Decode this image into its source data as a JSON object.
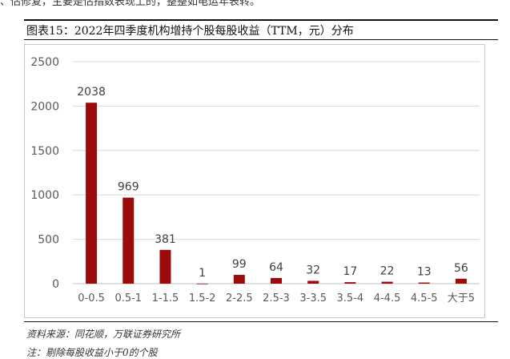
{
  "header": {
    "cropped_text": "、估修复，主要是估指数表现上的，整整如电运年表转。"
  },
  "figure": {
    "title": "图表15：2022年四季度机构增持个股每股收益（TTM，元）分布"
  },
  "footer": {
    "source": "资料来源：同花顺，万联证券研究所",
    "note": "注：剔除每股收益小于0的个股"
  },
  "colors": {
    "bar": "#9b0b0b",
    "grid": "#d9d9d9",
    "axis_text": "#595959"
  },
  "chart_data": {
    "type": "bar",
    "title": "",
    "xlabel": "",
    "ylabel": "",
    "categories": [
      "0-0.5",
      "0.5-1",
      "1-1.5",
      "1.5-2",
      "2-2.5",
      "2.5-3",
      "3-3.5",
      "3.5-4",
      "4-4.5",
      "4.5-5",
      "大于5"
    ],
    "values": [
      2038,
      969,
      381,
      1,
      99,
      64,
      32,
      17,
      22,
      13,
      56
    ],
    "data_labels": [
      "2038",
      "969",
      "381",
      "1",
      "99",
      "64",
      "32",
      "17",
      "22",
      "13",
      "56"
    ],
    "ylim": [
      0,
      2500
    ],
    "yticks": [
      0,
      500,
      1000,
      1500,
      2000,
      2500
    ],
    "ytick_labels": [
      "0",
      "500",
      "1000",
      "1500",
      "2000",
      "2500"
    ],
    "grid": true,
    "legend": "none"
  }
}
